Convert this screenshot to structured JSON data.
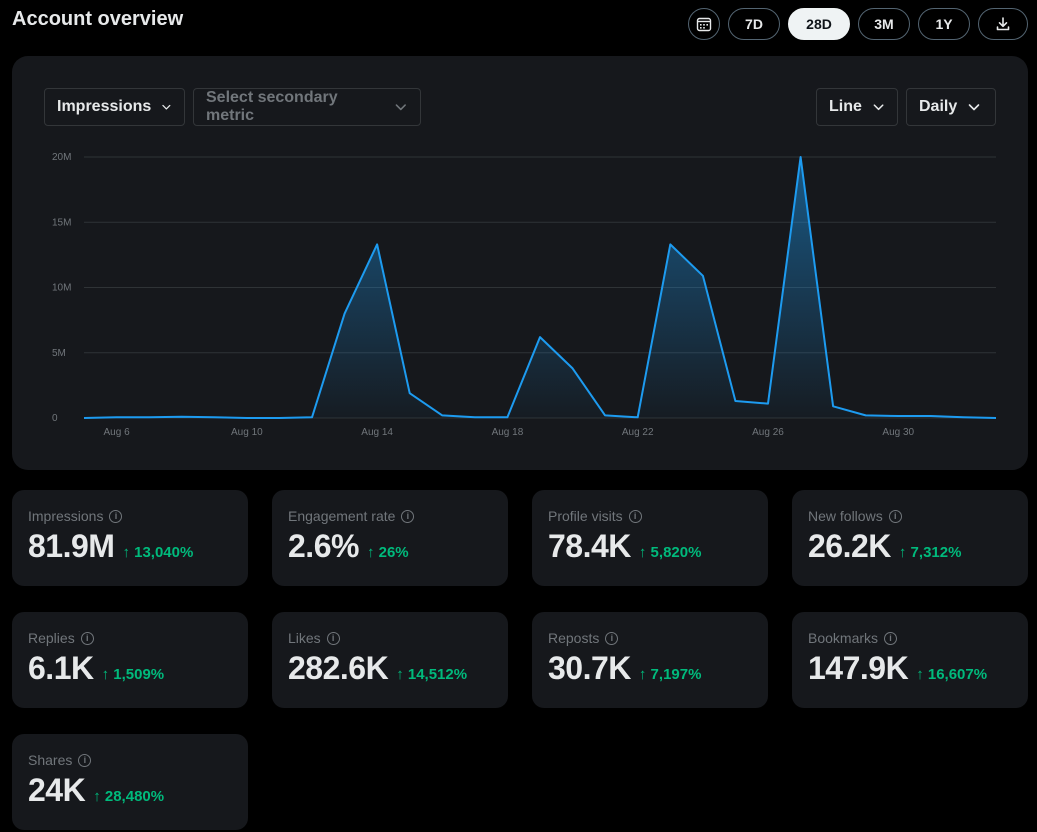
{
  "header": {
    "title": "Account overview"
  },
  "ranges": {
    "calendar_icon": "calendar-icon",
    "d7": "7D",
    "d28": "28D",
    "m3": "3M",
    "y1": "1Y",
    "active": "28D",
    "download_icon": "download-icon"
  },
  "controls": {
    "primary_metric": "Impressions",
    "secondary_metric_placeholder": "Select secondary metric",
    "chart_type": "Line",
    "granularity": "Daily"
  },
  "chart_data": {
    "type": "area",
    "x": [
      "Aug 5",
      "Aug 6",
      "Aug 7",
      "Aug 8",
      "Aug 9",
      "Aug 10",
      "Aug 11",
      "Aug 12",
      "Aug 13",
      "Aug 14",
      "Aug 15",
      "Aug 16",
      "Aug 17",
      "Aug 18",
      "Aug 19",
      "Aug 20",
      "Aug 21",
      "Aug 22",
      "Aug 23",
      "Aug 24",
      "Aug 25",
      "Aug 26",
      "Aug 27",
      "Aug 28",
      "Aug 29",
      "Aug 30",
      "Aug 31",
      "Sep 1",
      "Sep 2"
    ],
    "series": [
      {
        "values": [
          0,
          0.05,
          0.05,
          0.1,
          0.05,
          0,
          0,
          0.05,
          8,
          13.3,
          1.9,
          0.2,
          0.05,
          0.05,
          6.2,
          3.8,
          0.2,
          0.05,
          13.3,
          10.9,
          1.3,
          1.1,
          20,
          0.9,
          0.2,
          0.15,
          0.15,
          0.05,
          0
        ]
      }
    ],
    "x_ticks": [
      "Aug 6",
      "Aug 10",
      "Aug 14",
      "Aug 18",
      "Aug 22",
      "Aug 26",
      "Aug 30"
    ],
    "y_ticks": [
      "0",
      "5M",
      "10M",
      "15M",
      "20M"
    ],
    "ylim": [
      0,
      20
    ],
    "line_color": "#1d9bf0",
    "grid": true
  },
  "stats": [
    {
      "label": "Impressions",
      "value": "81.9M",
      "change": "↑ 13,040%"
    },
    {
      "label": "Engagement rate",
      "value": "2.6%",
      "change": "↑ 26%"
    },
    {
      "label": "Profile visits",
      "value": "78.4K",
      "change": "↑ 5,820%"
    },
    {
      "label": "New follows",
      "value": "26.2K",
      "change": "↑ 7,312%"
    },
    {
      "label": "Replies",
      "value": "6.1K",
      "change": "↑ 1,509%"
    },
    {
      "label": "Likes",
      "value": "282.6K",
      "change": "↑ 14,512%"
    },
    {
      "label": "Reposts",
      "value": "30.7K",
      "change": "↑ 7,197%"
    },
    {
      "label": "Bookmarks",
      "value": "147.9K",
      "change": "↑ 16,607%"
    },
    {
      "label": "Shares",
      "value": "24K",
      "change": "↑ 28,480%"
    }
  ],
  "colors": {
    "accent": "#1d9bf0",
    "positive": "#00ba7c"
  }
}
